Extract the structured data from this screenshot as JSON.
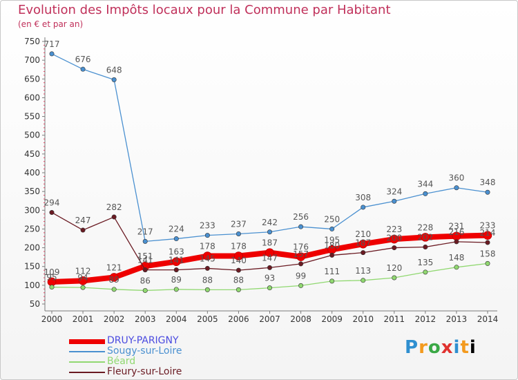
{
  "header": {
    "title": "Evolution des Impôts locaux pour la Commune par Habitant",
    "subtitle": "(en € et par an)"
  },
  "logo": {
    "text": "Proxiti"
  },
  "chart_data": {
    "type": "line",
    "title": "Evolution des Impôts locaux pour la Commune par Habitant",
    "subtitle": "(en € et par an)",
    "x": [
      "2000",
      "2001",
      "2002",
      "2003",
      "2004",
      "2005",
      "2006",
      "2007",
      "2008",
      "2009",
      "2010",
      "2011",
      "2012",
      "2013",
      "2014"
    ],
    "ylim": [
      50,
      750
    ],
    "yticks": [
      50,
      100,
      150,
      200,
      250,
      300,
      350,
      400,
      450,
      500,
      550,
      600,
      650,
      700,
      750
    ],
    "grid": false,
    "legend_position": "bottom-left",
    "series": [
      {
        "name": "DRUY-PARIGNY",
        "color": "#ee0000",
        "label_color": "#4a4ae0",
        "values": [
          109,
          112,
          121,
          151,
          163,
          178,
          178,
          187,
          176,
          195,
          210,
          223,
          228,
          231,
          233
        ],
        "labels": [
          "109",
          "112",
          "121",
          "151",
          "163",
          "178",
          "178",
          "187",
          "176",
          "195",
          "210",
          "223",
          "228",
          "231",
          "233"
        ]
      },
      {
        "name": "Sougy-sur-Loire",
        "color": "#4a90d0",
        "label_color": "#4a90d0",
        "values": [
          717,
          676,
          648,
          217,
          224,
          233,
          237,
          242,
          256,
          250,
          308,
          324,
          344,
          360,
          348
        ],
        "labels": [
          "717",
          "676",
          "648",
          "217",
          "224",
          "233",
          "237",
          "242",
          "256",
          "250",
          "308",
          "324",
          "344",
          "360",
          "348"
        ]
      },
      {
        "name": "Béard",
        "color": "#90d870",
        "label_color": "#90d870",
        "values": [
          95,
          94,
          89,
          86,
          89,
          88,
          88,
          93,
          99,
          111,
          113,
          120,
          135,
          148,
          158
        ],
        "labels": [
          "95",
          "94",
          "89",
          "86",
          "89",
          "88",
          "88",
          "93",
          "99",
          "111",
          "113",
          "120",
          "135",
          "148",
          "158"
        ]
      },
      {
        "name": "Fleury-sur-Loire",
        "color": "#6a1a22",
        "label_color": "#6a1a22",
        "values": [
          294,
          247,
          282,
          141,
          141,
          145,
          140,
          147,
          157,
          180,
          187,
          200,
          202,
          216,
          214
        ],
        "labels": [
          "294",
          "247",
          "282",
          "141",
          "141",
          "145",
          "140",
          "147",
          "157",
          "180",
          "187",
          "200",
          "202",
          "216",
          "214"
        ]
      }
    ]
  }
}
